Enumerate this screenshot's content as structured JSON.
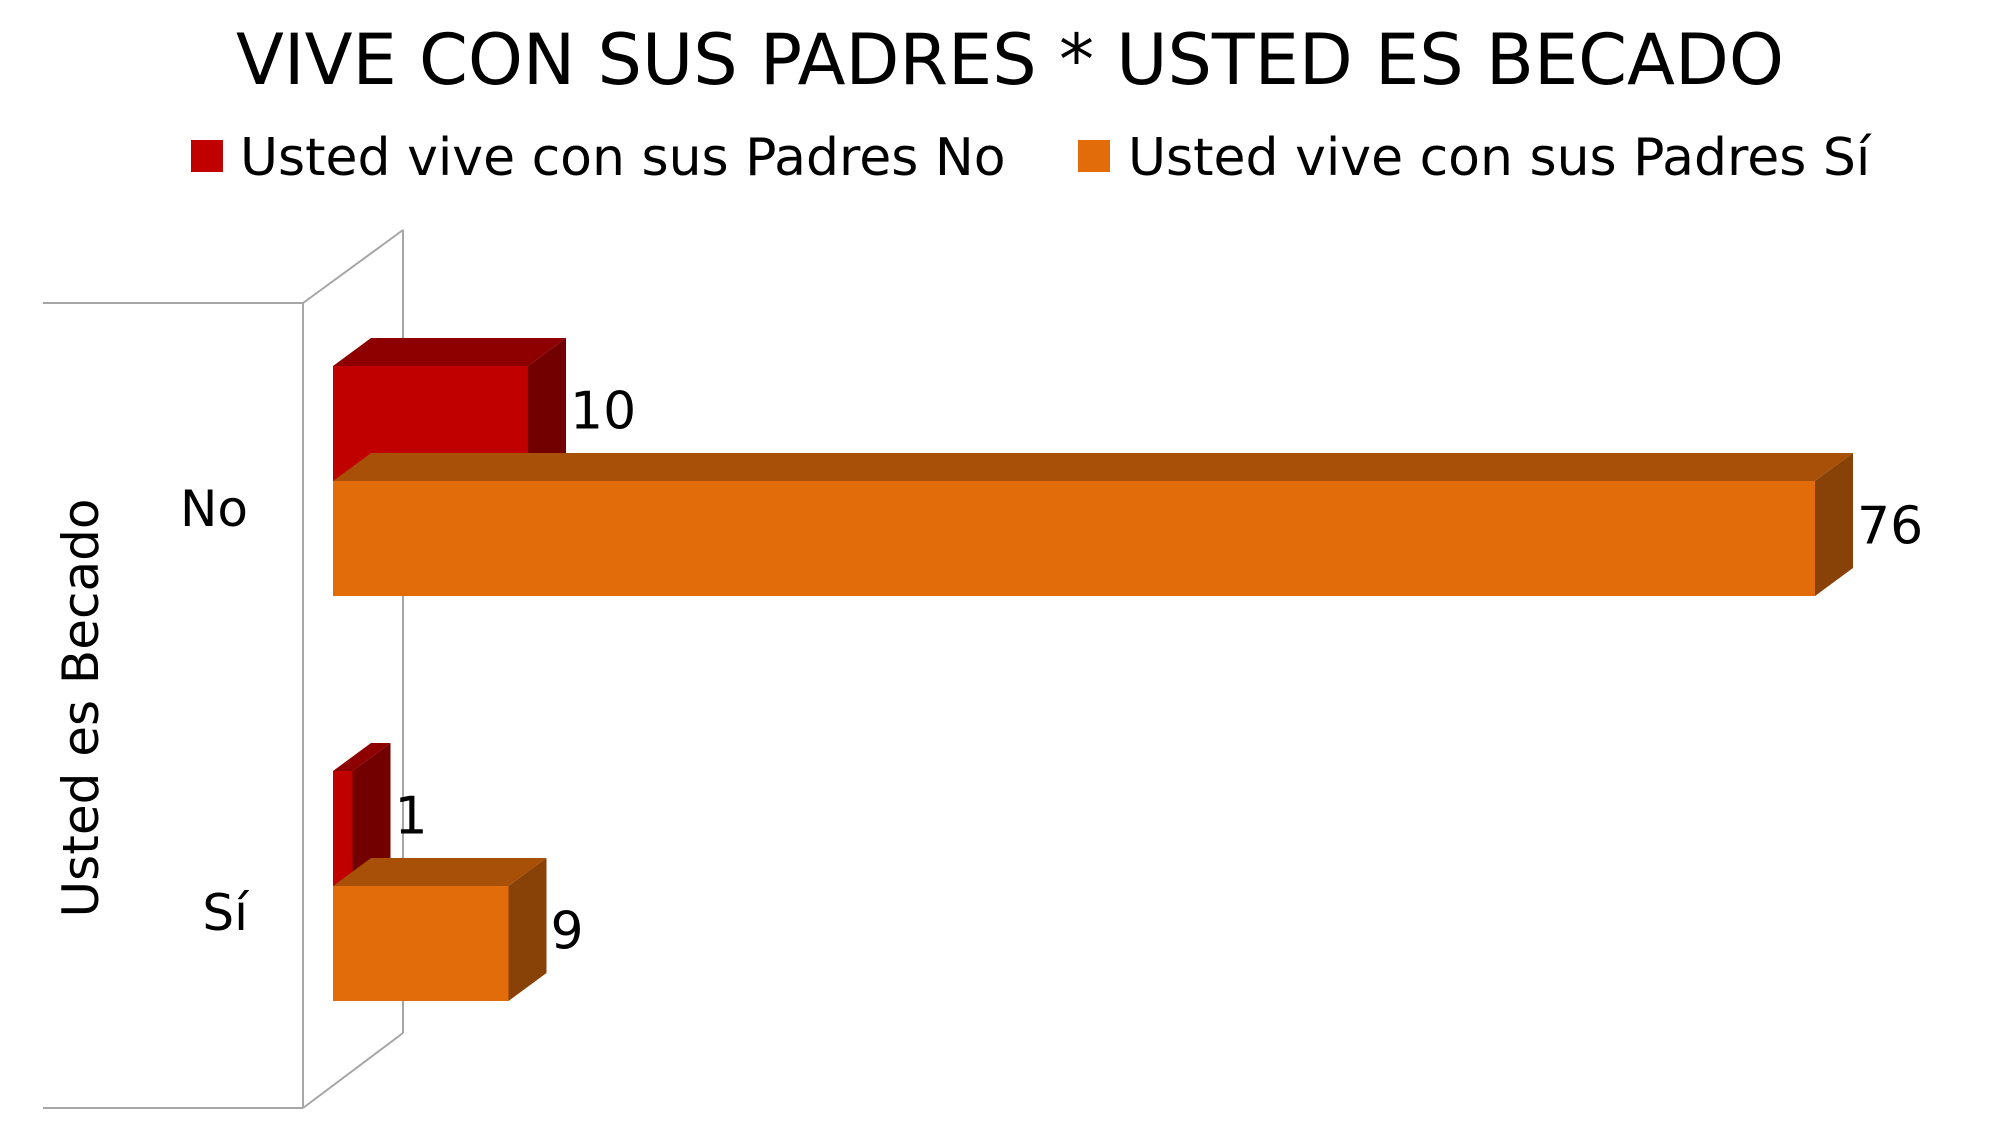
{
  "chart_data": {
    "type": "bar",
    "orientation": "horizontal",
    "three_d": true,
    "title": "VIVE CON SUS PADRES * USTED ES BECADO",
    "ylabel": "Usted es Becado",
    "xlabel": "",
    "categories": [
      "No",
      "Sí"
    ],
    "series": [
      {
        "name": "Usted vive con sus Padres No",
        "values": [
          10,
          1
        ],
        "color": "#c00000"
      },
      {
        "name": "Usted vive con sus Padres Sí",
        "values": [
          76,
          9
        ],
        "color": "#e36c0a"
      }
    ],
    "xlim": [
      0,
      76
    ],
    "grid": false,
    "legend_position": "top",
    "data_labels": true
  }
}
